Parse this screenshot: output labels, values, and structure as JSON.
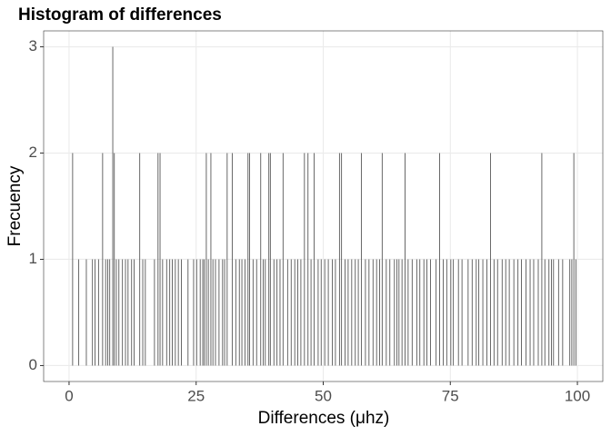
{
  "chart_data": {
    "type": "bar",
    "title": "Histogram of differences",
    "x_label": "Differences (μhz)",
    "y_label": "Frecuency",
    "color": "#595959",
    "x": [
      0.7,
      6.6,
      8.6,
      8.9,
      13.9,
      17.5,
      17.9,
      27.0,
      27.9,
      31.1,
      32.1,
      35.2,
      35.5,
      37.7,
      39.3,
      39.6,
      42.1,
      46.3,
      47.0,
      48.2,
      53.2,
      53.6,
      57.5,
      61.6,
      66.1,
      72.9,
      82.9,
      93.0,
      99.3,
      1.9,
      3.4,
      4.6,
      5.1,
      5.8,
      7.2,
      7.6,
      8.0,
      9.3,
      9.8,
      10.5,
      11.1,
      11.6,
      12.3,
      12.8,
      14.5,
      15.0,
      16.8,
      18.4,
      19.2,
      19.8,
      20.3,
      20.9,
      21.5,
      22.1,
      23.4,
      24.5,
      25.1,
      25.8,
      26.3,
      26.6,
      27.4,
      28.3,
      28.8,
      29.5,
      30.2,
      30.6,
      32.8,
      33.5,
      34.0,
      34.6,
      36.2,
      36.9,
      38.2,
      38.6,
      40.3,
      40.9,
      41.5,
      43.0,
      43.7,
      44.4,
      45.0,
      45.6,
      47.6,
      49.0,
      49.6,
      50.3,
      51.0,
      51.8,
      52.4,
      54.3,
      54.9,
      55.6,
      56.3,
      56.9,
      58.3,
      59.0,
      59.8,
      60.5,
      61.1,
      62.4,
      63.1,
      64.0,
      64.5,
      64.9,
      65.5,
      66.7,
      67.5,
      68.4,
      69.0,
      69.8,
      70.4,
      71.1,
      72.2,
      73.6,
      74.3,
      75.1,
      75.6,
      76.6,
      77.3,
      78.5,
      79.3,
      80.1,
      80.6,
      81.4,
      82.2,
      83.6,
      84.3,
      85.2,
      85.9,
      86.6,
      87.5,
      88.3,
      89.0,
      89.9,
      90.7,
      91.4,
      92.3,
      93.6,
      94.4,
      94.9,
      95.3,
      96.3,
      97.1,
      98.5,
      98.9,
      99.7
    ],
    "values": [
      2,
      2,
      3,
      2,
      2,
      2,
      2,
      2,
      2,
      2,
      2,
      2,
      2,
      2,
      2,
      2,
      2,
      2,
      2,
      2,
      2,
      2,
      2,
      2,
      2,
      2,
      2,
      2,
      2,
      1,
      1,
      1,
      1,
      1,
      1,
      1,
      1,
      1,
      1,
      1,
      1,
      1,
      1,
      1,
      1,
      1,
      1,
      1,
      1,
      1,
      1,
      1,
      1,
      1,
      1,
      1,
      1,
      1,
      1,
      1,
      1,
      1,
      1,
      1,
      1,
      1,
      1,
      1,
      1,
      1,
      1,
      1,
      1,
      1,
      1,
      1,
      1,
      1,
      1,
      1,
      1,
      1,
      1,
      1,
      1,
      1,
      1,
      1,
      1,
      1,
      1,
      1,
      1,
      1,
      1,
      1,
      1,
      1,
      1,
      1,
      1,
      1,
      1,
      1,
      1,
      1,
      1,
      1,
      1,
      1,
      1,
      1,
      1,
      1,
      1,
      1,
      1,
      1,
      1,
      1,
      1,
      1,
      1,
      1,
      1,
      1,
      1,
      1,
      1,
      1,
      1,
      1,
      1,
      1,
      1,
      1,
      1,
      1,
      1,
      1,
      1,
      1,
      1,
      1,
      1,
      1
    ],
    "xlim": [
      -5,
      105
    ],
    "xticks": [
      0,
      25,
      50,
      75,
      100
    ],
    "ylim": [
      -0.15,
      3.15
    ],
    "yticks": [
      0,
      1,
      2,
      3
    ],
    "grid": true
  }
}
